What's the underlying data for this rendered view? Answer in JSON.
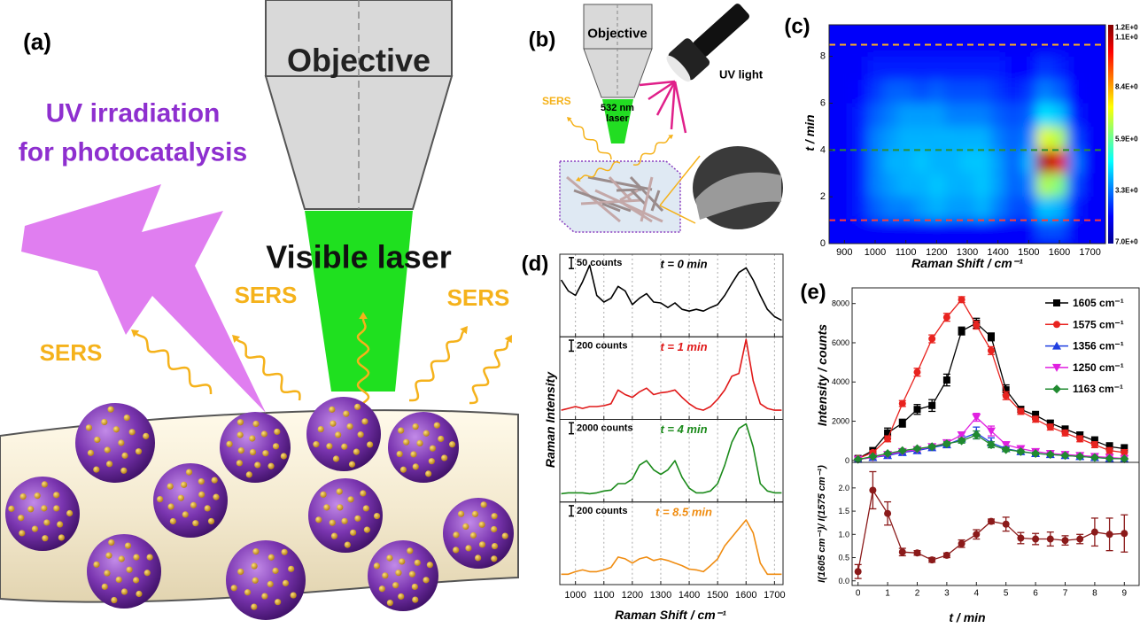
{
  "panels": {
    "a": {
      "label": "(a)",
      "objective": "Objective",
      "laser": "Visible laser",
      "uv": [
        "UV irradiation",
        "for photocatalysis"
      ],
      "sers": [
        "SERS",
        "SERS",
        "SERS"
      ]
    },
    "b": {
      "label": "(b)",
      "objective": "Objective",
      "laser": [
        "532 nm",
        "laser"
      ],
      "uv": "UV light",
      "sers": "SERS"
    }
  },
  "chart_data": [
    {
      "type": "heatmap",
      "label": "(c)",
      "x_label": "Raman Shift / cm⁻¹",
      "y_label": "t / min",
      "x": [
        900,
        950,
        1000,
        1050,
        1100,
        1150,
        1200,
        1250,
        1300,
        1350,
        1400,
        1450,
        1500,
        1550,
        1600,
        1650,
        1700
      ],
      "y": [
        0.5,
        1.5,
        2.5,
        3.5,
        4.5,
        5.5,
        6.5,
        7.5,
        8.5
      ],
      "z": [
        [
          0.12,
          0.12,
          0.12,
          0.12,
          0.12,
          0.12,
          0.12,
          0.12,
          0.12,
          0.12,
          0.12,
          0.12,
          0.12,
          0.2,
          0.2,
          0.12,
          0.12
        ],
        [
          0.12,
          0.15,
          0.22,
          0.25,
          0.25,
          0.28,
          0.3,
          0.28,
          0.28,
          0.3,
          0.25,
          0.2,
          0.2,
          0.32,
          0.3,
          0.15,
          0.12
        ],
        [
          0.12,
          0.15,
          0.25,
          0.28,
          0.3,
          0.3,
          0.32,
          0.3,
          0.3,
          0.32,
          0.28,
          0.22,
          0.25,
          0.55,
          0.5,
          0.2,
          0.12
        ],
        [
          0.12,
          0.15,
          0.25,
          0.3,
          0.3,
          0.32,
          0.3,
          0.3,
          0.32,
          0.32,
          0.28,
          0.22,
          0.3,
          0.95,
          0.9,
          0.25,
          0.12
        ],
        [
          0.12,
          0.15,
          0.25,
          0.28,
          0.3,
          0.3,
          0.3,
          0.3,
          0.3,
          0.3,
          0.25,
          0.22,
          0.25,
          0.6,
          0.55,
          0.2,
          0.12
        ],
        [
          0.12,
          0.15,
          0.22,
          0.25,
          0.28,
          0.28,
          0.28,
          0.25,
          0.25,
          0.25,
          0.22,
          0.2,
          0.22,
          0.35,
          0.32,
          0.15,
          0.12
        ],
        [
          0.12,
          0.13,
          0.18,
          0.22,
          0.22,
          0.2,
          0.22,
          0.2,
          0.2,
          0.2,
          0.18,
          0.15,
          0.18,
          0.25,
          0.22,
          0.13,
          0.12
        ],
        [
          0.12,
          0.12,
          0.15,
          0.15,
          0.15,
          0.15,
          0.15,
          0.15,
          0.15,
          0.15,
          0.15,
          0.13,
          0.13,
          0.18,
          0.16,
          0.12,
          0.12
        ],
        [
          0.12,
          0.12,
          0.12,
          0.12,
          0.12,
          0.12,
          0.12,
          0.12,
          0.12,
          0.12,
          0.12,
          0.12,
          0.12,
          0.12,
          0.12,
          0.12,
          0.12
        ]
      ],
      "xlim": [
        850,
        1750
      ],
      "xticks": [
        900,
        1000,
        1100,
        1200,
        1300,
        1400,
        1500,
        1600,
        1700
      ],
      "ylim": [
        0,
        9.35
      ],
      "yticks": [
        0,
        2,
        4,
        6,
        8
      ],
      "colorbar_labels": [
        "1.2E+0",
        "1.1E+0",
        "8.4E+0",
        "5.9E+0",
        "3.3E+0",
        "7.0E+0"
      ],
      "dashed_lines": [
        {
          "value": 1,
          "color": "#ff3b3b"
        },
        {
          "value": 4,
          "color": "#2f8f2f"
        },
        {
          "value": 8.5,
          "color": "#ffb020"
        }
      ]
    },
    {
      "type": "spectra",
      "label": "(d)",
      "x_label": "Raman Shift / cm⁻¹",
      "y_label": "Raman Intensity",
      "x": [
        950,
        975,
        1000,
        1025,
        1050,
        1075,
        1100,
        1125,
        1150,
        1175,
        1200,
        1225,
        1250,
        1275,
        1300,
        1325,
        1350,
        1375,
        1400,
        1425,
        1450,
        1475,
        1500,
        1525,
        1550,
        1575,
        1600,
        1625,
        1650,
        1675,
        1700,
        1725
      ],
      "xlim": [
        945,
        1730
      ],
      "xticks": [
        1000,
        1100,
        1200,
        1300,
        1400,
        1500,
        1600,
        1700
      ],
      "series": [
        {
          "name": "t = 0 min",
          "color": "#000000",
          "scale_bar": {
            "value": 50,
            "label": "50 counts"
          },
          "ylim": [
            0,
            375
          ],
          "values": [
            258,
            208,
            188,
            250,
            325,
            188,
            158,
            175,
            229,
            208,
            146,
            175,
            196,
            158,
            154,
            133,
            154,
            125,
            117,
            125,
            117,
            133,
            146,
            188,
            242,
            292,
            313,
            258,
            188,
            125,
            92,
            75
          ]
        },
        {
          "name": "t = 1 min",
          "color": "#e01818",
          "scale_bar": {
            "value": 200,
            "label": "200 counts"
          },
          "ylim": [
            0,
            1500
          ],
          "values": [
            167,
            200,
            234,
            200,
            234,
            234,
            250,
            284,
            534,
            451,
            400,
            501,
            568,
            451,
            484,
            501,
            534,
            400,
            284,
            200,
            167,
            234,
            367,
            534,
            785,
            835,
            1453,
            701,
            284,
            200,
            167,
            167
          ]
        },
        {
          "name": "t = 4 min",
          "color": "#1a8a1a",
          "scale_bar": {
            "value": 2000,
            "label": "2000 counts"
          },
          "ylim": [
            0,
            15000
          ],
          "values": [
            1500,
            1670,
            1670,
            1670,
            1500,
            1670,
            2000,
            2170,
            3340,
            3340,
            4170,
            6680,
            7510,
            5840,
            5010,
            5840,
            7510,
            4500,
            2500,
            1670,
            1670,
            2000,
            3340,
            6680,
            10850,
            13360,
            14190,
            10020,
            3340,
            2000,
            1670,
            1670
          ]
        },
        {
          "name": "t = 8.5 min",
          "color": "#f08c10",
          "scale_bar": {
            "value": 200,
            "label": "200 counts"
          },
          "ylim": [
            0,
            1600
          ],
          "values": [
            200,
            200,
            250,
            284,
            250,
            250,
            284,
            334,
            534,
            500,
            417,
            500,
            534,
            467,
            500,
            467,
            417,
            367,
            300,
            284,
            250,
            367,
            500,
            751,
            918,
            1085,
            1252,
            1002,
            417,
            200,
            200,
            200
          ]
        }
      ]
    },
    {
      "type": "line",
      "label": "(e)",
      "y_label": "Intensity / counts",
      "x": [
        0,
        0.5,
        1,
        1.5,
        2,
        2.5,
        3,
        3.5,
        4,
        4.5,
        5,
        5.5,
        6,
        6.5,
        7,
        7.5,
        8,
        8.5,
        9
      ],
      "xlim": [
        -0.2,
        9.5
      ],
      "ylim": [
        -100,
        8800
      ],
      "yticks": [
        0,
        2000,
        4000,
        6000,
        8000
      ],
      "legend": "upper right",
      "series": [
        {
          "name": "1605 cm⁻¹",
          "color": "#000000",
          "marker": "square",
          "values": [
            100,
            500,
            1400,
            1900,
            2600,
            2800,
            4100,
            6600,
            7000,
            6300,
            3600,
            2600,
            2300,
            1900,
            1600,
            1300,
            1000,
            700,
            600
          ],
          "errors": [
            100,
            150,
            250,
            200,
            250,
            300,
            300,
            200,
            250,
            200,
            250,
            150,
            200,
            150,
            150,
            150,
            200,
            200,
            200
          ]
        },
        {
          "name": "1575 cm⁻¹",
          "color": "#e8231f",
          "marker": "circle",
          "values": [
            100,
            400,
            1100,
            2900,
            4500,
            6200,
            7300,
            8200,
            6900,
            5600,
            3300,
            2500,
            2100,
            1700,
            1400,
            1100,
            800,
            500,
            400
          ],
          "errors": [
            80,
            100,
            150,
            150,
            200,
            200,
            200,
            150,
            200,
            200,
            200,
            150,
            150,
            150,
            150,
            150,
            150,
            150,
            150
          ]
        },
        {
          "name": "1356 cm⁻¹",
          "color": "#1f3fe0",
          "marker": "triangle-up",
          "values": [
            50,
            150,
            250,
            400,
            500,
            650,
            800,
            1100,
            1400,
            900,
            600,
            450,
            350,
            300,
            250,
            200,
            150,
            100,
            80
          ],
          "errors": [
            30,
            50,
            50,
            60,
            60,
            80,
            100,
            150,
            300,
            250,
            100,
            80,
            60,
            50,
            50,
            50,
            40,
            40,
            30
          ]
        },
        {
          "name": "1250 cm⁻¹",
          "color": "#e020e0",
          "marker": "triangle-down",
          "values": [
            50,
            150,
            300,
            450,
            550,
            700,
            900,
            1300,
            2200,
            1500,
            800,
            600,
            450,
            350,
            300,
            250,
            200,
            150,
            100
          ],
          "errors": [
            30,
            50,
            60,
            60,
            80,
            100,
            120,
            150,
            200,
            250,
            150,
            100,
            80,
            60,
            50,
            50,
            40,
            40,
            30
          ]
        },
        {
          "name": "1163 cm⁻¹",
          "color": "#208a30",
          "marker": "diamond",
          "values": [
            50,
            200,
            350,
            500,
            600,
            700,
            850,
            1000,
            1300,
            800,
            550,
            450,
            350,
            300,
            250,
            200,
            150,
            100,
            80
          ],
          "errors": [
            30,
            50,
            50,
            60,
            60,
            80,
            100,
            120,
            200,
            150,
            100,
            80,
            60,
            50,
            50,
            50,
            40,
            40,
            30
          ]
        }
      ]
    },
    {
      "type": "line",
      "x_label": "t / min",
      "y_label": "I(1605 cm⁻¹)/ I(1575 cm⁻¹)",
      "x": [
        0,
        0.5,
        1,
        1.5,
        2,
        2.5,
        3,
        3.5,
        4,
        4.5,
        5,
        5.5,
        6,
        6.5,
        7,
        7.5,
        8,
        8.5,
        9
      ],
      "xlim": [
        -0.2,
        9.5
      ],
      "xticks": [
        0,
        1,
        2,
        3,
        4,
        5,
        6,
        7,
        8,
        9
      ],
      "ylim": [
        -0.1,
        2.55
      ],
      "yticks": [
        {
          "value": 0,
          "label": "0.0"
        },
        {
          "value": 0.5,
          "label": "0.5"
        },
        {
          "value": 1,
          "label": "1.0"
        },
        {
          "value": 1.5,
          "label": "1.5"
        },
        {
          "value": 2,
          "label": "2.0"
        }
      ],
      "series": [
        {
          "color": "#8b1a1a",
          "marker": "circle",
          "values": [
            0.2,
            1.95,
            1.45,
            0.62,
            0.6,
            0.45,
            0.55,
            0.8,
            1.0,
            1.28,
            1.22,
            0.92,
            0.9,
            0.9,
            0.87,
            0.9,
            1.05,
            1.0,
            1.02
          ],
          "errors": [
            0.15,
            0.4,
            0.25,
            0.08,
            0.05,
            0.05,
            0.05,
            0.08,
            0.1,
            0.05,
            0.15,
            0.12,
            0.12,
            0.15,
            0.1,
            0.1,
            0.3,
            0.35,
            0.4
          ]
        }
      ]
    }
  ]
}
